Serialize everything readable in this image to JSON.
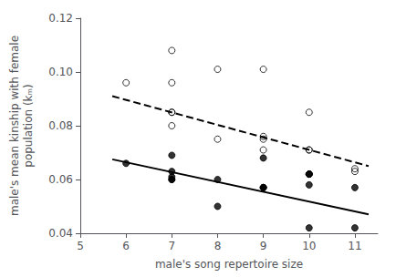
{
  "chart_data": {
    "type": "scatter",
    "xlabel": "male's song repertoire size",
    "ylabel": "male's mean kinship with female\npopulation (kₘ)",
    "xlim": [
      5,
      11.5
    ],
    "ylim": [
      0.04,
      0.12
    ],
    "xticks": [
      5,
      6,
      7,
      8,
      9,
      10,
      11
    ],
    "yticks": [
      0.04,
      0.06,
      0.08,
      {
        "value": 0.1,
        "label": "0.10"
      },
      0.12
    ],
    "grid": false,
    "series": [
      {
        "type": "scatter",
        "marker": "open_circle",
        "color": "#000000",
        "x": [
          6,
          7,
          7,
          7,
          7,
          7,
          8,
          8,
          9,
          9,
          9,
          9,
          10,
          10,
          10,
          10,
          10,
          11,
          11
        ],
        "values": [
          0.096,
          0.108,
          0.096,
          0.085,
          0.085,
          0.08,
          0.101,
          0.075,
          0.101,
          0.076,
          0.075,
          0.071,
          0.085,
          0.071,
          0.062,
          0.062,
          0.071,
          0.064,
          0.063
        ]
      },
      {
        "type": "scatter",
        "marker": "circle",
        "color": "#000000",
        "x": [
          6,
          7,
          7,
          7,
          7,
          7,
          8,
          8,
          9,
          9,
          9,
          9,
          10,
          10,
          10,
          10,
          11,
          11
        ],
        "values": [
          0.066,
          0.069,
          0.063,
          0.061,
          0.06,
          0.06,
          0.06,
          0.05,
          0.057,
          0.057,
          0.057,
          0.068,
          0.062,
          0.058,
          0.062,
          0.042,
          0.042,
          0.057
        ]
      },
      {
        "type": "line",
        "line_style": "dashed",
        "color": "#000000",
        "x": [
          5.7,
          11.3
        ],
        "values": [
          0.091,
          0.065
        ]
      },
      {
        "type": "line",
        "line_style": "solid",
        "color": "#000000",
        "x": [
          5.7,
          11.3
        ],
        "values": [
          0.0675,
          0.047
        ]
      }
    ]
  }
}
